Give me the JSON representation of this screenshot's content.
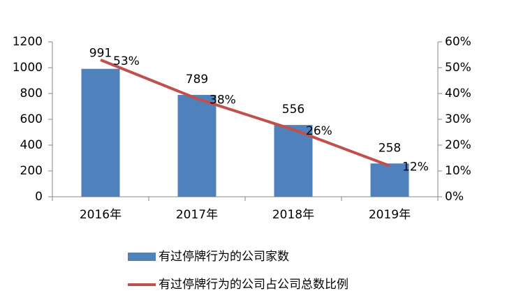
{
  "chart_data": {
    "type": "bar",
    "categories": [
      "2016年",
      "2017年",
      "2018年",
      "2019年"
    ],
    "series": [
      {
        "name": "有过停牌行为的公司家数",
        "type": "bar",
        "color": "#4f81bd",
        "values": [
          991,
          789,
          556,
          258
        ]
      },
      {
        "name": "有过停牌行为的公司占公司总数比例",
        "type": "line",
        "axis": "y2",
        "color": "#c0504d",
        "values": [
          53,
          38,
          26,
          12
        ],
        "value_labels": [
          "53%",
          "38%",
          "26%",
          "12%"
        ]
      }
    ],
    "ylim": [
      0,
      1200
    ],
    "yticks": [
      0,
      200,
      400,
      600,
      800,
      1000,
      1200
    ],
    "y2lim": [
      0,
      60
    ],
    "y2ticks": [
      {
        "value": 0,
        "label": "0%"
      },
      {
        "value": 10,
        "label": "10%"
      },
      {
        "value": 20,
        "label": "20%"
      },
      {
        "value": 30,
        "label": "30%"
      },
      {
        "value": 40,
        "label": "40%"
      },
      {
        "value": 50,
        "label": "50%"
      },
      {
        "value": 60,
        "label": "60%"
      }
    ],
    "grid": false
  }
}
